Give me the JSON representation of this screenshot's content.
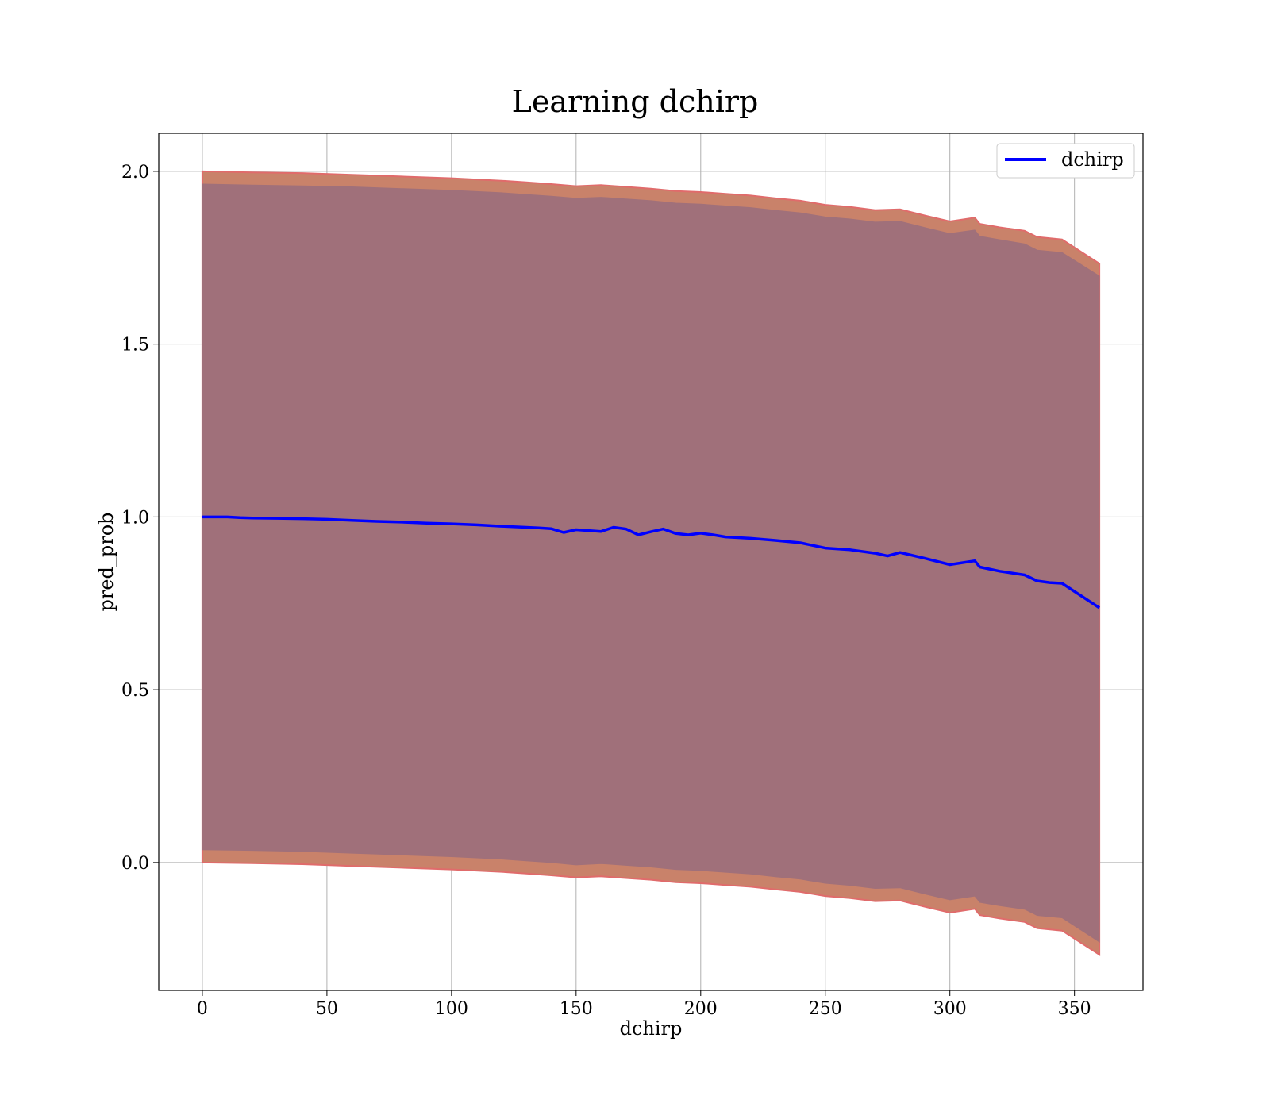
{
  "chart_data": {
    "type": "line",
    "title": "Learning dchirp",
    "xlabel": "dchirp",
    "ylabel": "pred_prob",
    "xlim": [
      -17.5,
      377.5
    ],
    "ylim": [
      -0.37,
      2.11
    ],
    "xticks": [
      0,
      50,
      100,
      150,
      200,
      250,
      300,
      350
    ],
    "xtick_labels": [
      "0",
      "50",
      "100",
      "150",
      "200",
      "250",
      "300",
      "350"
    ],
    "yticks": [
      0.0,
      0.5,
      1.0,
      1.5,
      2.0
    ],
    "ytick_labels": [
      "0.0",
      "0.5",
      "1.0",
      "1.5",
      "2.0"
    ],
    "grid": true,
    "legend": {
      "position": "top-right",
      "entries": [
        "dchirp"
      ]
    },
    "series": [
      {
        "name": "dchirp",
        "color": "#0000ff",
        "x": [
          0,
          10,
          15,
          20,
          30,
          40,
          50,
          60,
          70,
          80,
          90,
          100,
          110,
          120,
          130,
          135,
          140,
          145,
          150,
          160,
          165,
          170,
          175,
          180,
          185,
          190,
          195,
          200,
          205,
          210,
          220,
          230,
          240,
          250,
          260,
          270,
          275,
          280,
          290,
          300,
          310,
          312,
          320,
          330,
          335,
          340,
          345,
          360
        ],
        "y": [
          1.0,
          1.0,
          0.998,
          0.997,
          0.996,
          0.995,
          0.993,
          0.99,
          0.987,
          0.985,
          0.982,
          0.98,
          0.977,
          0.973,
          0.97,
          0.968,
          0.966,
          0.955,
          0.963,
          0.958,
          0.97,
          0.965,
          0.948,
          0.957,
          0.965,
          0.952,
          0.948,
          0.953,
          0.948,
          0.942,
          0.938,
          0.932,
          0.925,
          0.91,
          0.905,
          0.895,
          0.887,
          0.897,
          0.88,
          0.862,
          0.873,
          0.855,
          0.843,
          0.832,
          0.815,
          0.81,
          0.808,
          0.737
        ]
      }
    ],
    "bands": [
      {
        "color": "#c9826a",
        "edge_color": "#e06b6b",
        "x": [
          0,
          20,
          40,
          60,
          80,
          100,
          120,
          130,
          140,
          150,
          160,
          170,
          180,
          190,
          200,
          210,
          220,
          230,
          240,
          250,
          260,
          270,
          280,
          290,
          300,
          310,
          312,
          320,
          330,
          335,
          345,
          360
        ],
        "upper": [
          2.0,
          1.997,
          1.995,
          1.99,
          1.985,
          1.98,
          1.973,
          1.968,
          1.963,
          1.957,
          1.96,
          1.955,
          1.95,
          1.943,
          1.94,
          1.935,
          1.93,
          1.922,
          1.915,
          1.903,
          1.897,
          1.888,
          1.89,
          1.872,
          1.855,
          1.866,
          1.848,
          1.838,
          1.828,
          1.81,
          1.803,
          1.733
        ],
        "lower": [
          0.0,
          -0.002,
          -0.005,
          -0.01,
          -0.015,
          -0.02,
          -0.027,
          -0.032,
          -0.037,
          -0.043,
          -0.04,
          -0.045,
          -0.05,
          -0.057,
          -0.06,
          -0.065,
          -0.07,
          -0.078,
          -0.085,
          -0.097,
          -0.103,
          -0.112,
          -0.11,
          -0.128,
          -0.145,
          -0.134,
          -0.152,
          -0.162,
          -0.172,
          -0.19,
          -0.197,
          -0.267
        ]
      },
      {
        "color": "#a0707a",
        "x": [
          0,
          20,
          40,
          60,
          80,
          100,
          120,
          130,
          140,
          150,
          160,
          170,
          180,
          190,
          200,
          210,
          220,
          230,
          240,
          250,
          260,
          270,
          280,
          290,
          300,
          310,
          312,
          320,
          330,
          335,
          345,
          360
        ],
        "upper": [
          1.963,
          1.96,
          1.958,
          1.955,
          1.95,
          1.945,
          1.938,
          1.933,
          1.928,
          1.922,
          1.925,
          1.92,
          1.915,
          1.908,
          1.905,
          1.9,
          1.895,
          1.887,
          1.88,
          1.868,
          1.862,
          1.853,
          1.855,
          1.837,
          1.82,
          1.83,
          1.812,
          1.802,
          1.79,
          1.772,
          1.765,
          1.697
        ],
        "lower": [
          0.037,
          0.035,
          0.032,
          0.027,
          0.022,
          0.017,
          0.01,
          0.005,
          0.0,
          -0.007,
          -0.003,
          -0.008,
          -0.013,
          -0.02,
          -0.023,
          -0.028,
          -0.033,
          -0.041,
          -0.048,
          -0.06,
          -0.066,
          -0.075,
          -0.073,
          -0.091,
          -0.108,
          -0.097,
          -0.115,
          -0.125,
          -0.135,
          -0.153,
          -0.16,
          -0.23
        ]
      }
    ]
  }
}
